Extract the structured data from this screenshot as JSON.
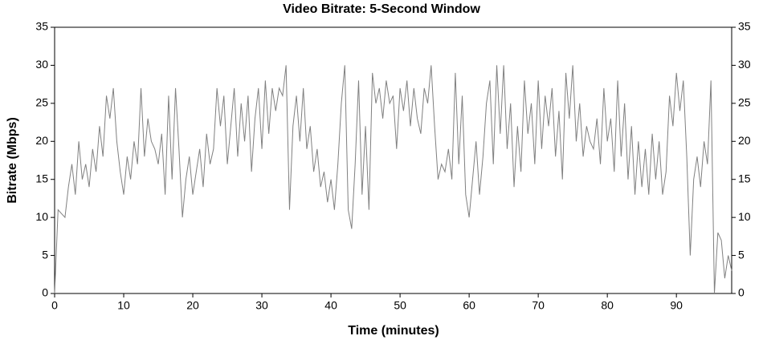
{
  "chart_data": {
    "type": "line",
    "title": "Video Bitrate: 5-Second Window",
    "x_label": "Time (minutes)",
    "y_label": "Bitrate (Mbps)",
    "x": [
      0,
      0.5,
      1,
      1.5,
      2,
      2.5,
      3,
      3.5,
      4,
      4.5,
      5,
      5.5,
      6,
      6.5,
      7,
      7.5,
      8,
      8.5,
      9,
      9.5,
      10,
      10.5,
      11,
      11.5,
      12,
      12.5,
      13,
      13.5,
      14,
      14.5,
      15,
      15.5,
      16,
      16.5,
      17,
      17.5,
      18,
      18.5,
      19,
      19.5,
      20,
      20.5,
      21,
      21.5,
      22,
      22.5,
      23,
      23.5,
      24,
      24.5,
      25,
      25.5,
      26,
      26.5,
      27,
      27.5,
      28,
      28.5,
      29,
      29.5,
      30,
      30.5,
      31,
      31.5,
      32,
      32.5,
      33,
      33.5,
      34,
      34.5,
      35,
      35.5,
      36,
      36.5,
      37,
      37.5,
      38,
      38.5,
      39,
      39.5,
      40,
      40.5,
      41,
      41.5,
      42,
      42.5,
      43,
      43.5,
      44,
      44.5,
      45,
      45.5,
      46,
      46.5,
      47,
      47.5,
      48,
      48.5,
      49,
      49.5,
      50,
      50.5,
      51,
      51.5,
      52,
      52.5,
      53,
      53.5,
      54,
      54.5,
      55,
      55.5,
      56,
      56.5,
      57,
      57.5,
      58,
      58.5,
      59,
      59.5,
      60,
      60.5,
      61,
      61.5,
      62,
      62.5,
      63,
      63.5,
      64,
      64.5,
      65,
      65.5,
      66,
      66.5,
      67,
      67.5,
      68,
      68.5,
      69,
      69.5,
      70,
      70.5,
      71,
      71.5,
      72,
      72.5,
      73,
      73.5,
      74,
      74.5,
      75,
      75.5,
      76,
      76.5,
      77,
      77.5,
      78,
      78.5,
      79,
      79.5,
      80,
      80.5,
      81,
      81.5,
      82,
      82.5,
      83,
      83.5,
      84,
      84.5,
      85,
      85.5,
      86,
      86.5,
      87,
      87.5,
      88,
      88.5,
      89,
      89.5,
      90,
      90.5,
      91,
      91.5,
      92,
      92.5,
      93,
      93.5,
      94,
      94.5,
      95,
      95.5,
      96,
      96.5,
      97,
      97.5,
      98
    ],
    "values": [
      0,
      11,
      10.5,
      10,
      14,
      17,
      13,
      20,
      15,
      17,
      14,
      19,
      16,
      22,
      18,
      26,
      23,
      27,
      20,
      16,
      13,
      18,
      15,
      20,
      17,
      27,
      18,
      23,
      20,
      19,
      17,
      21,
      13,
      26,
      15,
      27,
      19,
      10,
      15,
      18,
      13,
      16,
      19,
      14,
      21,
      17,
      19,
      27,
      22,
      26,
      17,
      22,
      27,
      18,
      25,
      20,
      26,
      16,
      23,
      27,
      19,
      28,
      21,
      27,
      24,
      27,
      26,
      30,
      11,
      22,
      26,
      20,
      27,
      19,
      22,
      16,
      19,
      14,
      16,
      12,
      15,
      11,
      17,
      25,
      30,
      11,
      8.5,
      17,
      28,
      13,
      22,
      11,
      29,
      25,
      27,
      23,
      28,
      25,
      26,
      19,
      27,
      24,
      28,
      22,
      27,
      23,
      21,
      27,
      25,
      30,
      22,
      15,
      17,
      16,
      19,
      15,
      29,
      17,
      26,
      13,
      10,
      15,
      20,
      13,
      18,
      25,
      28,
      17,
      30,
      21,
      30,
      19,
      25,
      14,
      22,
      16,
      28,
      21,
      25,
      17,
      28,
      19,
      26,
      22,
      27,
      18,
      24,
      15,
      29,
      23,
      30,
      20,
      25,
      18,
      22,
      20,
      19,
      23,
      17,
      27,
      20,
      23,
      16,
      28,
      18,
      25,
      15,
      22,
      13,
      20,
      14,
      19,
      13,
      21,
      15,
      20,
      13,
      16,
      26,
      22,
      29,
      24,
      28,
      18,
      5,
      15,
      18,
      14,
      20,
      17,
      28,
      0,
      8,
      7,
      2,
      5,
      3
    ],
    "color": "#808080",
    "xlim": [
      0,
      98
    ],
    "ylim": [
      0,
      35
    ],
    "xticks": [
      0,
      10,
      20,
      30,
      40,
      50,
      60,
      70,
      80,
      90
    ],
    "yticks": [
      0,
      5,
      10,
      15,
      20,
      25,
      30,
      35
    ]
  }
}
